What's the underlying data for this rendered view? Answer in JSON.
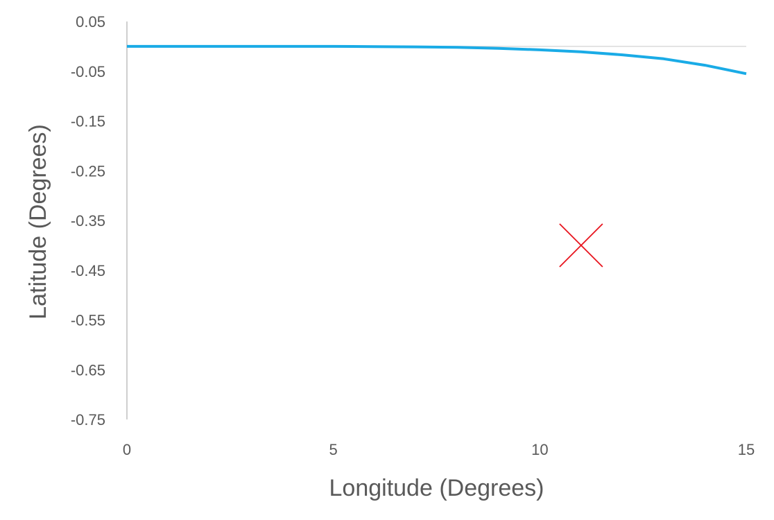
{
  "chart_data": {
    "type": "line",
    "title": "",
    "xlabel": "Longitude (Degrees)",
    "ylabel": "Latitude (Degrees)",
    "xlim": [
      0,
      15
    ],
    "ylim": [
      -0.75,
      0.05
    ],
    "x_ticks": [
      0,
      5,
      10,
      15
    ],
    "x_tick_labels": [
      "0",
      "5",
      "10",
      "15"
    ],
    "y_ticks": [
      0.05,
      -0.05,
      -0.15,
      -0.25,
      -0.35,
      -0.45,
      -0.55,
      -0.65,
      -0.75
    ],
    "y_tick_labels": [
      "0.05",
      "-0.05",
      "-0.15",
      "-0.25",
      "-0.35",
      "-0.45",
      "-0.55",
      "-0.65",
      "-0.75"
    ],
    "grid": false,
    "legend": "none",
    "series": [
      {
        "type": "line",
        "color": "#1AABE6",
        "x": [
          0,
          1,
          2,
          3,
          4,
          5,
          6,
          7,
          8,
          9,
          10,
          11,
          12,
          13,
          14,
          15
        ],
        "y": [
          0,
          0,
          0,
          0,
          0,
          0,
          -0.0005,
          -0.001,
          -0.002,
          -0.004,
          -0.007,
          -0.011,
          -0.017,
          -0.025,
          -0.038,
          -0.055
        ]
      },
      {
        "type": "scatter",
        "marker": "x",
        "color": "#E8141E",
        "x": [
          11
        ],
        "y": [
          -0.4
        ]
      }
    ],
    "reference_lines": [
      {
        "orientation": "horizontal",
        "y": 0,
        "color": "#D9D9D9"
      }
    ]
  }
}
